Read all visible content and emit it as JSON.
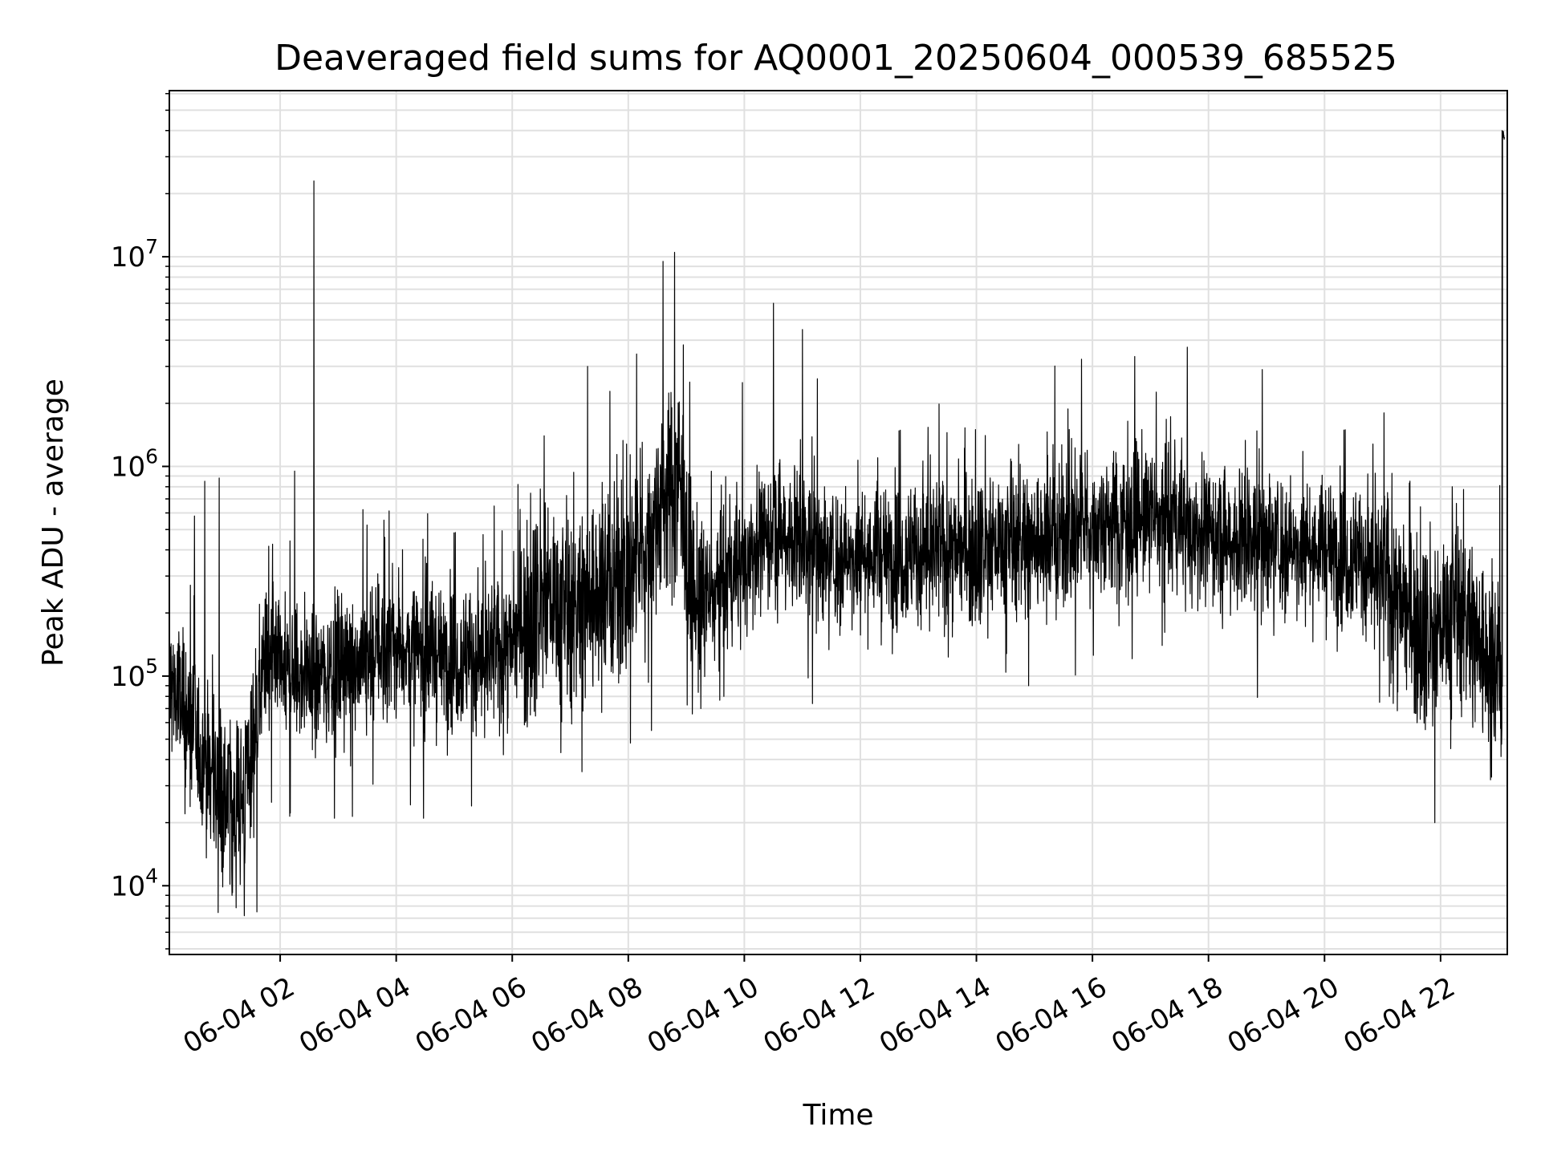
{
  "chart_data": {
    "type": "line",
    "title": "Deaveraged field sums for AQ0001_20250604_000539_685525",
    "xlabel": "Time",
    "ylabel": "Peak ADU - average",
    "y_scale": "log",
    "x_unit": "hours of 2025-06-04",
    "xlim": [
      0.09,
      23.15
    ],
    "ylim": [
      4700,
      62000000
    ],
    "grid": true,
    "line_color": "#000000",
    "grid_color": "#e0e0e0",
    "x_ticks": [
      {
        "value": 2,
        "label": "06-04 02"
      },
      {
        "value": 4,
        "label": "06-04 04"
      },
      {
        "value": 6,
        "label": "06-04 06"
      },
      {
        "value": 8,
        "label": "06-04 08"
      },
      {
        "value": 10,
        "label": "06-04 10"
      },
      {
        "value": 12,
        "label": "06-04 12"
      },
      {
        "value": 14,
        "label": "06-04 14"
      },
      {
        "value": 16,
        "label": "06-04 16"
      },
      {
        "value": 18,
        "label": "06-04 18"
      },
      {
        "value": 20,
        "label": "06-04 20"
      },
      {
        "value": 22,
        "label": "06-04 22"
      }
    ],
    "y_ticks": [
      {
        "value": 10000,
        "base": "10",
        "exp": "4"
      },
      {
        "value": 100000,
        "base": "10",
        "exp": "5"
      },
      {
        "value": 1000000,
        "base": "10",
        "exp": "6"
      },
      {
        "value": 10000000,
        "base": "10",
        "exp": "7"
      }
    ],
    "series": [
      {
        "baseline": {
          "x": [
            0.09,
            0.3,
            0.6,
            0.9,
            1.1,
            1.35,
            1.5,
            1.7,
            2.0,
            2.5,
            3.0,
            3.5,
            4.0,
            4.5,
            5.0,
            5.5,
            6.0,
            6.3,
            6.6,
            7.0,
            7.5,
            8.0,
            8.3,
            8.6,
            8.9,
            9.1,
            9.4,
            9.8,
            10.2,
            10.6,
            11.0,
            11.5,
            12.0,
            12.5,
            13.0,
            13.5,
            14.0,
            14.5,
            15.0,
            15.5,
            16.0,
            16.5,
            17.0,
            17.5,
            18.0,
            18.5,
            19.0,
            19.5,
            20.0,
            20.5,
            21.0,
            21.3,
            21.6,
            21.9,
            22.2,
            22.5,
            22.8,
            23.0,
            23.08
          ],
          "y": [
            100000,
            70000,
            45000,
            30000,
            25000,
            26000,
            45000,
            110000,
            105000,
            100000,
            110000,
            130000,
            140000,
            125000,
            125000,
            120000,
            140000,
            200000,
            240000,
            200000,
            250000,
            300000,
            420000,
            700000,
            900000,
            220000,
            230000,
            300000,
            420000,
            500000,
            450000,
            370000,
            370000,
            380000,
            390000,
            390000,
            410000,
            430000,
            440000,
            470000,
            520000,
            560000,
            570000,
            520000,
            480000,
            450000,
            450000,
            410000,
            400000,
            380000,
            300000,
            220000,
            180000,
            150000,
            220000,
            180000,
            120000,
            100000,
            110000
          ]
        },
        "spikes": [
          {
            "x": 0.7,
            "y": 850000
          },
          {
            "x": 0.95,
            "y": 880000
          },
          {
            "x": 1.17,
            "y": 9000
          },
          {
            "x": 1.38,
            "y": 7200
          },
          {
            "x": 1.6,
            "y": 7500
          },
          {
            "x": 1.85,
            "y": 25000
          },
          {
            "x": 2.25,
            "y": 950000
          },
          {
            "x": 2.58,
            "y": 23000000
          },
          {
            "x": 4.47,
            "y": 21000
          },
          {
            "x": 5.3,
            "y": 24000
          },
          {
            "x": 6.1,
            "y": 820000
          },
          {
            "x": 6.55,
            "y": 1400000
          },
          {
            "x": 7.2,
            "y": 35000
          },
          {
            "x": 7.3,
            "y": 3000000
          },
          {
            "x": 8.4,
            "y": 55000
          },
          {
            "x": 8.6,
            "y": 9500000
          },
          {
            "x": 8.8,
            "y": 10500000
          },
          {
            "x": 8.95,
            "y": 3800000
          },
          {
            "x": 9.25,
            "y": 70000
          },
          {
            "x": 9.65,
            "y": 80000
          },
          {
            "x": 10.5,
            "y": 6000000
          },
          {
            "x": 11.0,
            "y": 4500000
          },
          {
            "x": 11.1,
            "y": 98000
          },
          {
            "x": 12.3,
            "y": 1100000
          },
          {
            "x": 14.9,
            "y": 90000
          },
          {
            "x": 15.6,
            "y": 1500000
          },
          {
            "x": 16.85,
            "y": 1500000
          },
          {
            "x": 17.2,
            "y": 140000
          },
          {
            "x": 20.95,
            "y": 75000
          },
          {
            "x": 21.9,
            "y": 20000
          },
          {
            "x": 22.2,
            "y": 800000
          },
          {
            "x": 22.86,
            "y": 32000
          },
          {
            "x": 23.06,
            "y": 40000000
          },
          {
            "x": 23.1,
            "y": 38000000
          }
        ]
      }
    ]
  }
}
